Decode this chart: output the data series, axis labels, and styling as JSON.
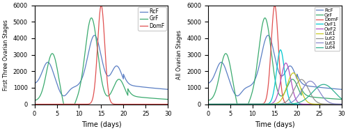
{
  "xlabel": "Time (days)",
  "ylabel_left": "First Three Ovarian Stages",
  "ylabel_right": "All Ovarian Stages",
  "xlim": [
    0,
    30
  ],
  "ylim": [
    0,
    6000
  ],
  "yticks": [
    0,
    1000,
    2000,
    3000,
    4000,
    5000,
    6000
  ],
  "xticks": [
    0,
    5,
    10,
    15,
    20,
    25,
    30
  ],
  "colors": {
    "RcF": "#5b7fc4",
    "GrF": "#3aaa6e",
    "DomF": "#e05050",
    "OvF1": "#00c8d0",
    "OvF2": "#b050c0",
    "Lut1": "#c8c820",
    "Lut2": "#909090",
    "Lut3": "#8888cc",
    "Lut4": "#30b090"
  },
  "legend_left": [
    "RcF",
    "GrF",
    "DomF"
  ],
  "legend_right": [
    "RcF",
    "GrF",
    "DomF",
    "OvF1",
    "OvF2",
    "Lut1",
    "Lut2",
    "Lut3",
    "Lut4"
  ],
  "figsize": [
    5.0,
    1.88
  ],
  "dpi": 100
}
